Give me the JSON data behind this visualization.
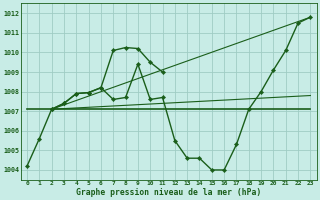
{
  "bg_color": "#c8ece6",
  "grid_color": "#a0ccc4",
  "line_color": "#1a5e1a",
  "marker_color": "#1a5e1a",
  "title": "Graphe pression niveau de la mer (hPa)",
  "xlim": [
    -0.5,
    23.5
  ],
  "ylim": [
    1003.5,
    1012.5
  ],
  "yticks": [
    1004,
    1005,
    1006,
    1007,
    1008,
    1009,
    1010,
    1011,
    1012
  ],
  "xticks": [
    0,
    1,
    2,
    3,
    4,
    5,
    6,
    7,
    8,
    9,
    10,
    11,
    12,
    13,
    14,
    15,
    16,
    17,
    18,
    19,
    20,
    21,
    22,
    23
  ],
  "series": [
    {
      "x": [
        0,
        1,
        2,
        3,
        4,
        5,
        6,
        7,
        8,
        9,
        10,
        11
      ],
      "y": [
        1004.2,
        1005.6,
        1007.1,
        1007.4,
        1007.9,
        1007.95,
        1008.2,
        1010.1,
        1010.25,
        1010.2,
        1009.5,
        1009.0
      ],
      "has_marker": true,
      "linewidth": 1.0
    },
    {
      "x": [
        0,
        23
      ],
      "y": [
        1007.1,
        1007.1
      ],
      "has_marker": false,
      "linewidth": 1.2
    },
    {
      "x": [
        2,
        23
      ],
      "y": [
        1007.1,
        1007.8
      ],
      "has_marker": false,
      "linewidth": 0.8
    },
    {
      "x": [
        2,
        23
      ],
      "y": [
        1007.1,
        1011.8
      ],
      "has_marker": false,
      "linewidth": 0.8
    },
    {
      "x": [
        2,
        3,
        4,
        5,
        6,
        7,
        8,
        9,
        10,
        11,
        12,
        13,
        14,
        15,
        16,
        17,
        18,
        19,
        20,
        21,
        22,
        23
      ],
      "y": [
        1007.1,
        1007.4,
        1007.9,
        1007.95,
        1008.2,
        1007.6,
        1007.7,
        1009.4,
        1007.6,
        1007.7,
        1005.5,
        1004.6,
        1004.6,
        1004.0,
        1004.0,
        1005.3,
        1007.1,
        1008.0,
        1009.1,
        1010.1,
        1011.5,
        1011.8
      ],
      "has_marker": true,
      "linewidth": 1.0
    }
  ]
}
